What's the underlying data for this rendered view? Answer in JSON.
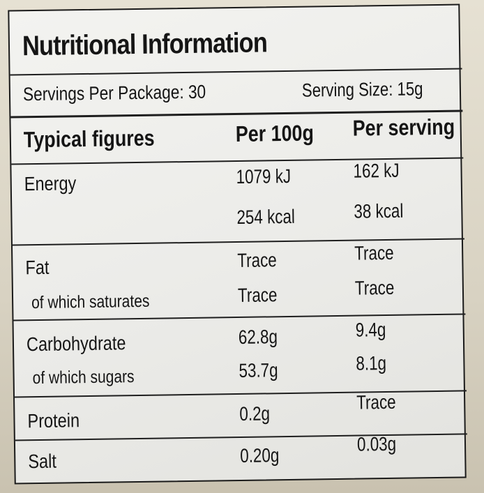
{
  "title": "Nutritional Information",
  "servings_per_package": "Servings Per Package: 30",
  "serving_size": "Serving Size: 15g",
  "columns": {
    "name": "Typical figures",
    "per100": "Per 100g",
    "perserving": "Per serving"
  },
  "rows": [
    {
      "name": "Energy",
      "per100": "1079 kJ",
      "perserving": "162 kJ"
    },
    {
      "name": "",
      "per100": "254 kcal",
      "perserving": "38 kcal"
    },
    {
      "name": "Fat",
      "per100": "Trace",
      "perserving": "Trace"
    },
    {
      "name": "of which saturates",
      "per100": "Trace",
      "perserving": "Trace"
    },
    {
      "name": "Carbohydrate",
      "per100": "62.8g",
      "perserving": "9.4g"
    },
    {
      "name": "of which sugars",
      "per100": "53.7g",
      "perserving": "8.1g"
    },
    {
      "name": "Protein",
      "per100": "0.2g",
      "perserving": "Trace"
    },
    {
      "name": "Salt",
      "per100": "0.20g",
      "perserving": "0.03g"
    }
  ]
}
